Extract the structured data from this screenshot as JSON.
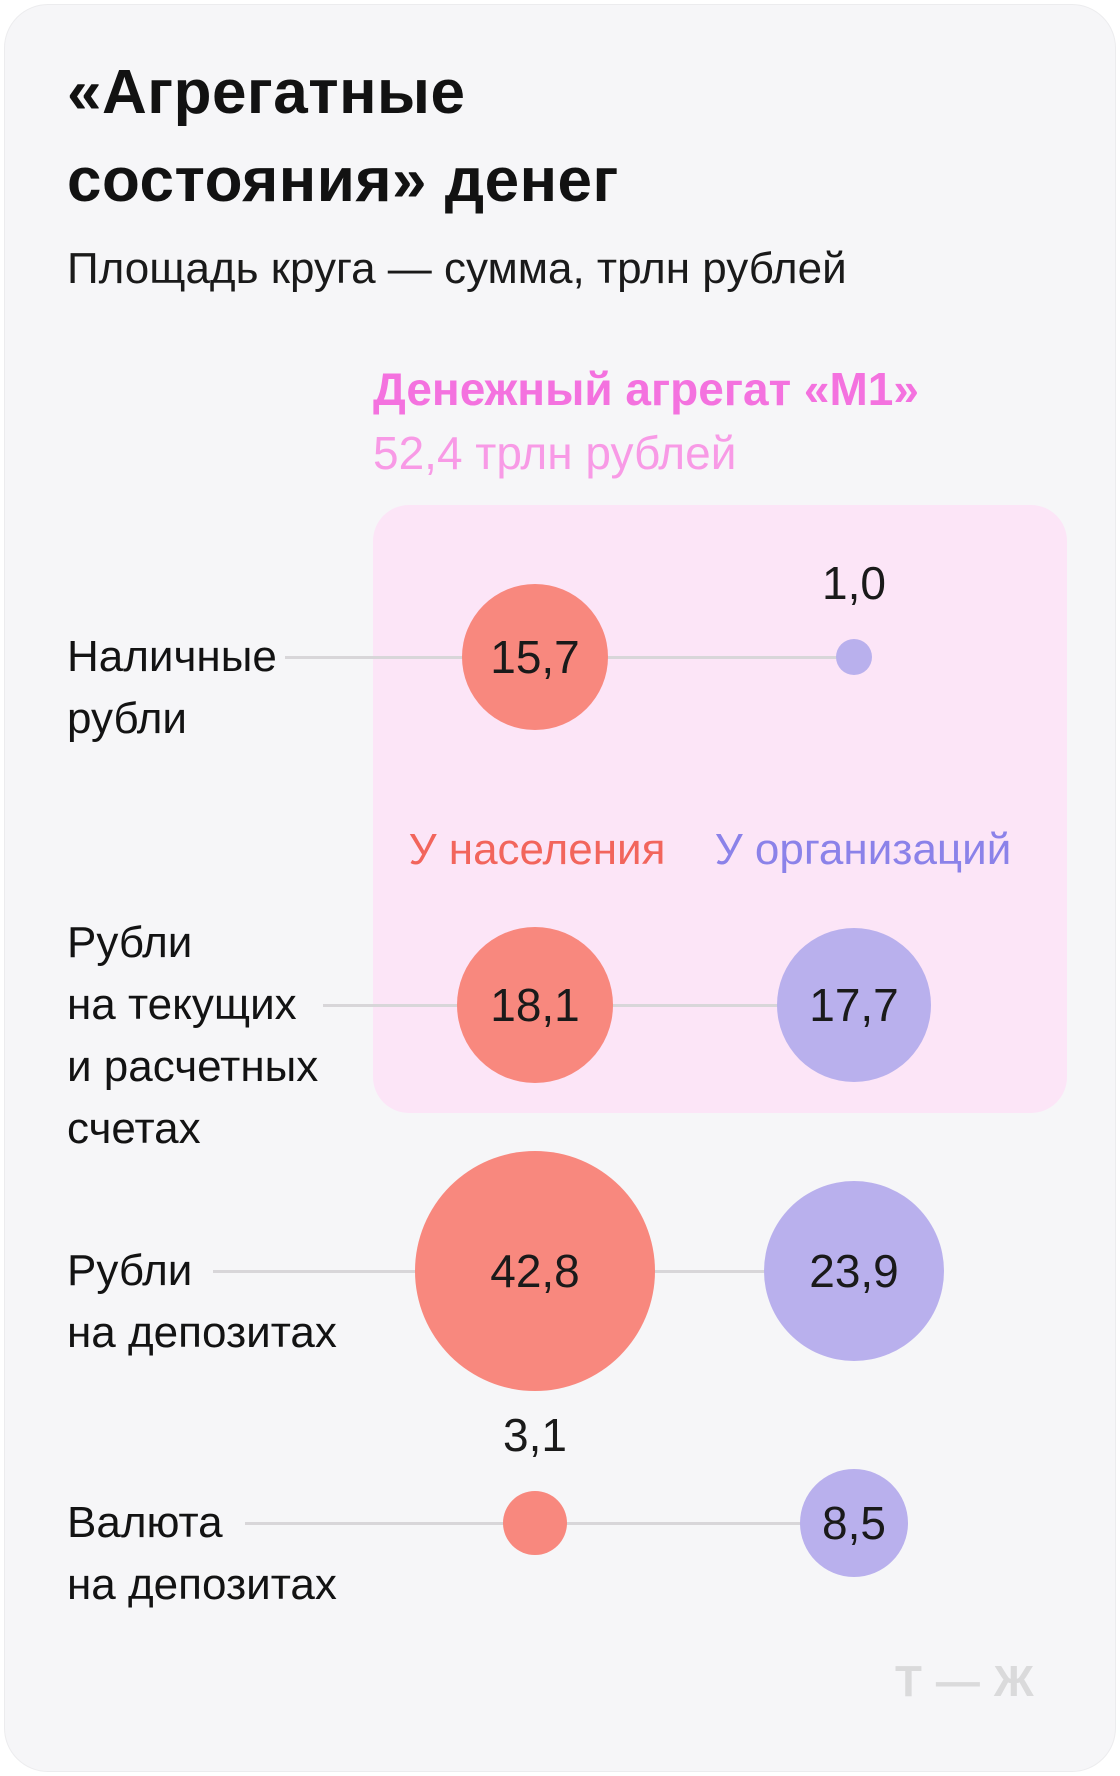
{
  "page": {
    "title": "«Агрегатные\nсостояния» денег",
    "subtitle": "Площадь круга — сумма, трлн рублей",
    "logo": "Т—Ж"
  },
  "m1": {
    "label": "Денежный агрегат «М1»",
    "value": "52,4 трлн рублей"
  },
  "legend": {
    "population": "У населения",
    "organizations": "У организаций"
  },
  "rows": [
    {
      "id": "cash-rubles",
      "label": "Наличные\nрубли",
      "population": {
        "value": 15.7,
        "display": "15,7"
      },
      "organizations": {
        "value": 1.0,
        "display": "1,0"
      }
    },
    {
      "id": "current-accounts-rubles",
      "label": "Рубли\nна текущих\nи расчетных\nсчетах",
      "population": {
        "value": 18.1,
        "display": "18,1"
      },
      "organizations": {
        "value": 17.7,
        "display": "17,7"
      }
    },
    {
      "id": "deposit-rubles",
      "label": "Рубли\nна депозитах",
      "population": {
        "value": 42.8,
        "display": "42,8"
      },
      "organizations": {
        "value": 23.9,
        "display": "23,9"
      }
    },
    {
      "id": "deposit-currency",
      "label": "Валюта\nна депозитах",
      "population": {
        "value": 3.1,
        "display": "3,1"
      },
      "organizations": {
        "value": 8.5,
        "display": "8,5"
      }
    }
  ],
  "colors": {
    "background": "#f6f6f8",
    "population_bubble": "#f8887e",
    "organizations_bubble": "#b9b0ed",
    "population_text": "#f2655c",
    "organizations_text": "#8b82e9",
    "m1_label": "#f472df",
    "m1_value": "#f89ae6",
    "m1_region": "#fce5f7",
    "text": "#131313",
    "connector": "#d8d6d9",
    "logo": "#dadadb"
  },
  "chart_data": {
    "type": "scatter",
    "variant": "bubble",
    "title": "«Агрегатные состояния» денег",
    "subtitle": "Площадь круга — сумма, трлн рублей",
    "unit": "трлн рублей",
    "size_encoding": "circle area proportional to value",
    "categories": [
      "Наличные рубли",
      "Рубли на текущих и расчетных счетах",
      "Рубли на депозитах",
      "Валюта на депозитах"
    ],
    "series": [
      {
        "name": "У населения",
        "color": "#f8887e",
        "label_color": "#f2655c",
        "values": [
          15.7,
          18.1,
          42.8,
          3.1
        ]
      },
      {
        "name": "У организаций",
        "color": "#b9b0ed",
        "label_color": "#8b82e9",
        "values": [
          1.0,
          17.7,
          23.9,
          8.5
        ]
      }
    ],
    "annotations": [
      {
        "label": "Денежный агрегат «М1»",
        "value": 52.4,
        "display": "52,4 трлн рублей",
        "covers_categories": [
          0,
          1
        ],
        "region_color": "#fce5f7"
      }
    ],
    "legend_position": "inside highlighted region, above second category row"
  }
}
